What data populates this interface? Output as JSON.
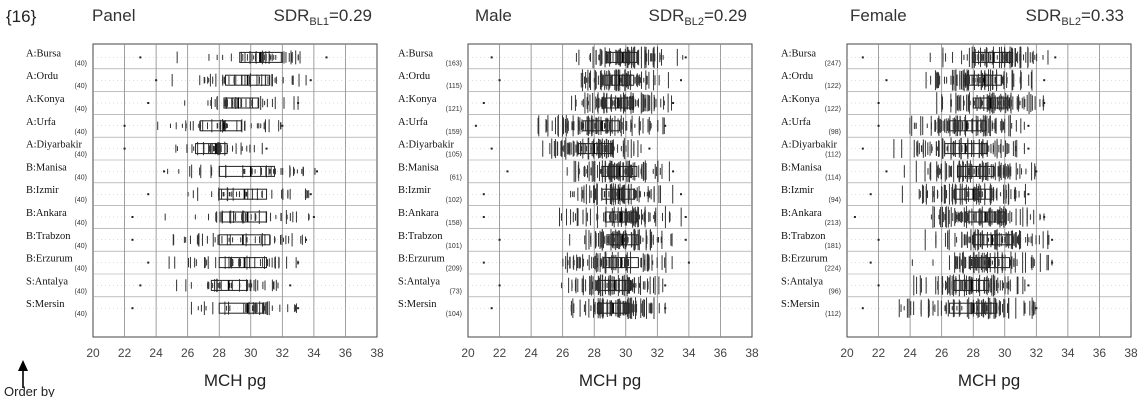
{
  "figure": {
    "label": "{16}",
    "order_note": "Order by"
  },
  "chart_data": [
    {
      "type": "boxplot",
      "title": "Panel",
      "sdr_label": "SDR",
      "sdr_sub": "BL1",
      "sdr_value": "=0.29",
      "xlabel": "MCH   pg",
      "xlim": [
        20,
        38
      ],
      "xticks": [
        20,
        22,
        24,
        26,
        28,
        30,
        32,
        34,
        36,
        38
      ],
      "grid": true,
      "rows": [
        {
          "label": "A:Bursa",
          "n": "(40)",
          "q1": 29.3,
          "median": 30.6,
          "q3": 32.0,
          "lo": 23.0,
          "hi": 34.8,
          "spread": 2.5
        },
        {
          "label": "A:Ordu",
          "n": "(40)",
          "q1": 28.4,
          "median": 29.8,
          "q3": 31.2,
          "lo": 24.0,
          "hi": 33.8,
          "spread": 2.5
        },
        {
          "label": "A:Konya",
          "n": "(40)",
          "q1": 28.3,
          "median": 29.2,
          "q3": 30.5,
          "lo": 23.5,
          "hi": 33.0,
          "spread": 2.2
        },
        {
          "label": "A:Urfa",
          "n": "(40)",
          "q1": 26.8,
          "median": 28.3,
          "q3": 29.4,
          "lo": 22.0,
          "hi": 32.0,
          "spread": 2.5
        },
        {
          "label": "A:Diyarbakir",
          "n": "(40)",
          "q1": 26.5,
          "median": 27.8,
          "q3": 28.5,
          "lo": 22.0,
          "hi": 31.0,
          "spread": 2.2
        },
        {
          "label": "B:Manisa",
          "n": "(40)",
          "q1": 28.0,
          "median": 30.0,
          "q3": 31.5,
          "lo": 24.5,
          "hi": 34.2,
          "spread": 2.5
        },
        {
          "label": "B:Izmir",
          "n": "(40)",
          "q1": 28.0,
          "median": 29.6,
          "q3": 31.0,
          "lo": 23.5,
          "hi": 33.8,
          "spread": 2.5
        },
        {
          "label": "B:Ankara",
          "n": "(40)",
          "q1": 28.2,
          "median": 29.8,
          "q3": 31.0,
          "lo": 22.5,
          "hi": 34.0,
          "spread": 2.5
        },
        {
          "label": "B:Trabzon",
          "n": "(40)",
          "q1": 28.0,
          "median": 29.5,
          "q3": 31.2,
          "lo": 22.5,
          "hi": 33.5,
          "spread": 2.5
        },
        {
          "label": "B:Erzurum",
          "n": "(40)",
          "q1": 28.0,
          "median": 29.6,
          "q3": 31.0,
          "lo": 23.5,
          "hi": 33.0,
          "spread": 2.5
        },
        {
          "label": "S:Antalya",
          "n": "(40)",
          "q1": 27.5,
          "median": 28.6,
          "q3": 29.8,
          "lo": 23.0,
          "hi": 32.5,
          "spread": 2.5
        },
        {
          "label": "S:Mersin",
          "n": "(40)",
          "q1": 28.0,
          "median": 29.8,
          "q3": 30.8,
          "lo": 22.5,
          "hi": 33.0,
          "spread": 2.5
        }
      ]
    },
    {
      "type": "boxplot",
      "title": "Male",
      "sdr_label": "SDR",
      "sdr_sub": "BL2",
      "sdr_value": "=0.29",
      "xlabel": "MCH   pg",
      "xlim": [
        20,
        38
      ],
      "xticks": [
        20,
        22,
        24,
        26,
        28,
        30,
        32,
        34,
        36,
        38
      ],
      "grid": true,
      "rows": [
        {
          "label": "A:Bursa",
          "n": "(163)",
          "q1": 28.8,
          "median": 29.8,
          "q3": 30.7,
          "lo": 21.5,
          "hi": 33.8,
          "spread": 2.3
        },
        {
          "label": "A:Ordu",
          "n": "(115)",
          "q1": 28.7,
          "median": 29.6,
          "q3": 30.5,
          "lo": 22.0,
          "hi": 33.5,
          "spread": 2.3
        },
        {
          "label": "A:Konya",
          "n": "(121)",
          "q1": 28.5,
          "median": 29.5,
          "q3": 30.5,
          "lo": 21.0,
          "hi": 33.0,
          "spread": 2.3
        },
        {
          "label": "A:Urfa",
          "n": "(159)",
          "q1": 27.3,
          "median": 28.5,
          "q3": 29.6,
          "lo": 20.5,
          "hi": 32.5,
          "spread": 2.4
        },
        {
          "label": "A:Diyarbakir",
          "n": "(105)",
          "q1": 27.0,
          "median": 28.0,
          "q3": 29.2,
          "lo": 21.5,
          "hi": 31.5,
          "spread": 2.3
        },
        {
          "label": "B:Manisa",
          "n": "(61)",
          "q1": 28.5,
          "median": 29.6,
          "q3": 30.7,
          "lo": 22.5,
          "hi": 33.0,
          "spread": 2.3
        },
        {
          "label": "B:Izmir",
          "n": "(102)",
          "q1": 28.5,
          "median": 29.6,
          "q3": 30.5,
          "lo": 21.0,
          "hi": 33.5,
          "spread": 2.3
        },
        {
          "label": "B:Ankara",
          "n": "(158)",
          "q1": 28.7,
          "median": 29.7,
          "q3": 30.7,
          "lo": 21.0,
          "hi": 33.8,
          "spread": 2.3
        },
        {
          "label": "B:Trabzon",
          "n": "(101)",
          "q1": 28.8,
          "median": 29.8,
          "q3": 30.8,
          "lo": 22.0,
          "hi": 33.8,
          "spread": 2.3
        },
        {
          "label": "B:Erzurum",
          "n": "(209)",
          "q1": 28.6,
          "median": 29.7,
          "q3": 30.8,
          "lo": 21.0,
          "hi": 34.0,
          "spread": 2.3
        },
        {
          "label": "S:Antalya",
          "n": "(73)",
          "q1": 28.2,
          "median": 29.3,
          "q3": 30.3,
          "lo": 22.0,
          "hi": 32.5,
          "spread": 2.3
        },
        {
          "label": "S:Mersin",
          "n": "(104)",
          "q1": 28.2,
          "median": 29.2,
          "q3": 30.2,
          "lo": 21.5,
          "hi": 32.5,
          "spread": 2.3
        }
      ]
    },
    {
      "type": "boxplot",
      "title": "Female",
      "sdr_label": "SDR",
      "sdr_sub": "BL2",
      "sdr_value": "=0.33",
      "xlabel": "MCH   pg",
      "xlim": [
        20,
        38
      ],
      "xticks": [
        20,
        22,
        24,
        26,
        28,
        30,
        32,
        34,
        36,
        38
      ],
      "grid": true,
      "rows": [
        {
          "label": "A:Bursa",
          "n": "(247)",
          "q1": 28.0,
          "median": 29.3,
          "q3": 30.5,
          "lo": 21.0,
          "hi": 33.2,
          "spread": 2.5
        },
        {
          "label": "A:Ordu",
          "n": "(122)",
          "q1": 27.5,
          "median": 28.7,
          "q3": 29.8,
          "lo": 22.5,
          "hi": 32.5,
          "spread": 2.4
        },
        {
          "label": "A:Konya",
          "n": "(122)",
          "q1": 28.0,
          "median": 29.1,
          "q3": 30.3,
          "lo": 22.0,
          "hi": 32.5,
          "spread": 2.4
        },
        {
          "label": "A:Urfa",
          "n": "(98)",
          "q1": 26.5,
          "median": 27.6,
          "q3": 28.8,
          "lo": 22.0,
          "hi": 31.5,
          "spread": 2.4
        },
        {
          "label": "A:Diyarbakir",
          "n": "(112)",
          "q1": 26.2,
          "median": 27.5,
          "q3": 28.9,
          "lo": 21.0,
          "hi": 31.5,
          "spread": 2.4
        },
        {
          "label": "B:Manisa",
          "n": "(114)",
          "q1": 27.0,
          "median": 28.2,
          "q3": 29.3,
          "lo": 22.5,
          "hi": 32.0,
          "spread": 2.4
        },
        {
          "label": "B:Izmir",
          "n": "(94)",
          "q1": 26.8,
          "median": 28.0,
          "q3": 29.3,
          "lo": 21.5,
          "hi": 31.5,
          "spread": 2.4
        },
        {
          "label": "B:Ankara",
          "n": "(213)",
          "q1": 27.5,
          "median": 28.8,
          "q3": 30.0,
          "lo": 20.5,
          "hi": 32.5,
          "spread": 2.5
        },
        {
          "label": "B:Trabzon",
          "n": "(181)",
          "q1": 28.0,
          "median": 29.2,
          "q3": 30.5,
          "lo": 22.0,
          "hi": 33.0,
          "spread": 2.5
        },
        {
          "label": "B:Erzurum",
          "n": "(224)",
          "q1": 27.8,
          "median": 29.0,
          "q3": 30.3,
          "lo": 21.5,
          "hi": 33.0,
          "spread": 2.5
        },
        {
          "label": "S:Antalya",
          "n": "(96)",
          "q1": 26.8,
          "median": 27.9,
          "q3": 29.0,
          "lo": 22.0,
          "hi": 31.5,
          "spread": 2.4
        },
        {
          "label": "S:Mersin",
          "n": "(112)",
          "q1": 26.5,
          "median": 28.0,
          "q3": 29.5,
          "lo": 21.0,
          "hi": 32.0,
          "spread": 2.5
        }
      ]
    }
  ]
}
